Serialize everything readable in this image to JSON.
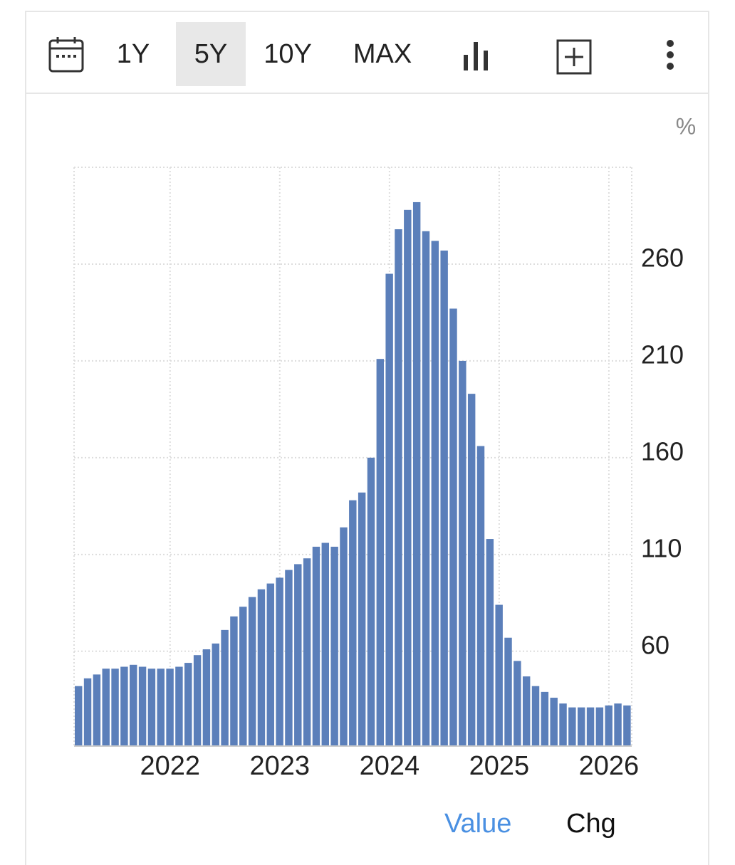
{
  "toolbar": {
    "ranges": [
      "1Y",
      "5Y",
      "10Y",
      "MAX"
    ],
    "selected": "5Y"
  },
  "chart_data": {
    "type": "bar",
    "unit": "%",
    "categories": [
      null,
      null,
      null,
      null,
      null,
      null,
      null,
      null,
      null,
      null,
      "2022",
      null,
      null,
      null,
      null,
      null,
      null,
      null,
      null,
      null,
      null,
      null,
      "2023",
      null,
      null,
      null,
      null,
      null,
      null,
      null,
      null,
      null,
      null,
      null,
      "2024",
      null,
      null,
      null,
      null,
      null,
      null,
      null,
      null,
      null,
      null,
      null,
      "2025",
      null,
      null,
      null,
      null,
      null,
      null,
      null,
      null,
      null,
      null,
      null,
      "2026",
      null,
      null
    ],
    "values": [
      42,
      46,
      48,
      51,
      51,
      52,
      53,
      52,
      51,
      51,
      51,
      52,
      54,
      58,
      61,
      64,
      71,
      78,
      83,
      88,
      92,
      95,
      98,
      102,
      105,
      108,
      114,
      116,
      114,
      124,
      138,
      142,
      160,
      211,
      255,
      278,
      288,
      292,
      277,
      272,
      267,
      237,
      210,
      193,
      166,
      118,
      84,
      67,
      55,
      47,
      42,
      39,
      36,
      33,
      31,
      31,
      31,
      31,
      32,
      33,
      32
    ],
    "color": "#5b7fba",
    "ylim": [
      11,
      310
    ],
    "yticks": [
      60,
      110,
      160,
      210,
      260
    ],
    "grid": true
  },
  "tabs": {
    "items": [
      "Value",
      "Chg"
    ],
    "active": "Value"
  }
}
